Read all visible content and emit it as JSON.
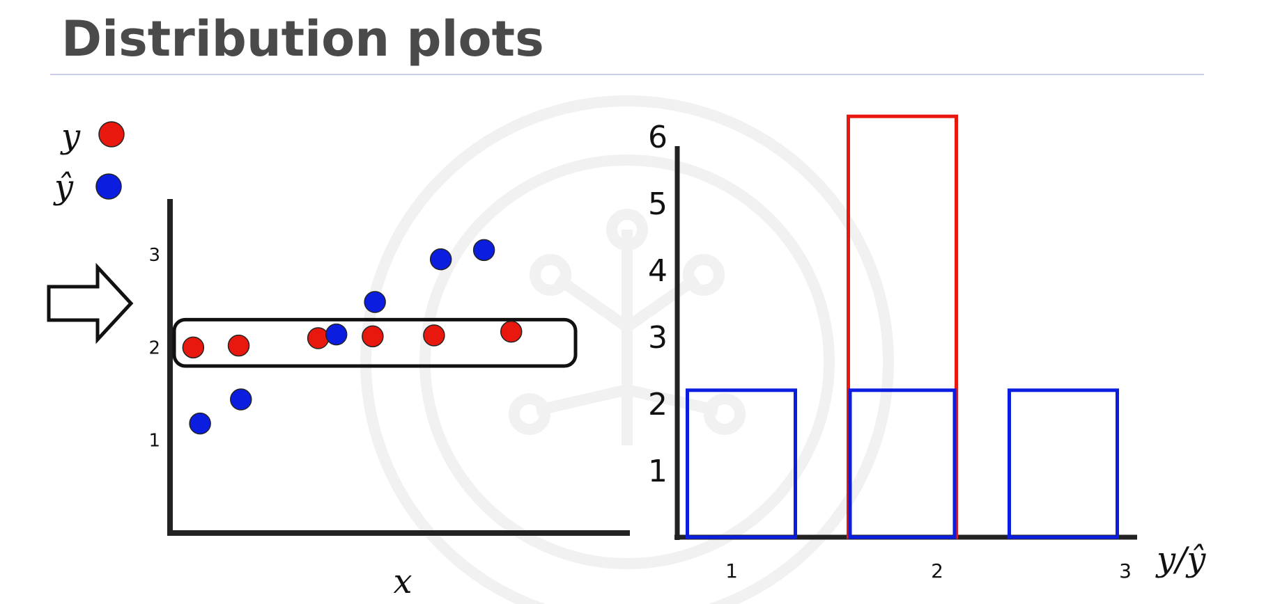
{
  "title": "Distribution plots",
  "colors": {
    "actual": "#e8180f",
    "predicted": "#0b1ee0",
    "axis": "#222222",
    "title": "#4a4a4a",
    "rule": "#c8cce8"
  },
  "chart_data": [
    {
      "type": "scatter",
      "legend": [
        {
          "label": "y",
          "color": "#e8180f"
        },
        {
          "label": "ŷ",
          "color": "#0b1ee0"
        }
      ],
      "legend_position": "top-left",
      "xlabel": "x",
      "ylabel": "",
      "yticks": [
        "1",
        "2",
        "3"
      ],
      "ylim": [
        0,
        3.6
      ],
      "xlim": [
        0,
        10
      ],
      "series": [
        {
          "name": "y",
          "color": "#e8180f",
          "points": [
            [
              0.45,
              2.0
            ],
            [
              1.45,
              2.02
            ],
            [
              3.2,
              2.1
            ],
            [
              4.4,
              2.12
            ],
            [
              5.75,
              2.13
            ],
            [
              7.45,
              2.17
            ]
          ]
        },
        {
          "name": "ŷ",
          "color": "#0b1ee0",
          "points": [
            [
              0.6,
              1.18
            ],
            [
              1.5,
              1.44
            ],
            [
              3.6,
              2.14
            ],
            [
              4.45,
              2.49
            ],
            [
              5.9,
              2.95
            ],
            [
              6.85,
              3.05
            ]
          ]
        }
      ],
      "highlight_band": {
        "y_from": 1.8,
        "y_to": 2.3
      },
      "arrow": "pointing right at the highlighted band",
      "grid": false
    },
    {
      "type": "bar",
      "chart_style": "overlaid outlined histogram",
      "xlabel": "y/ŷ",
      "ylabel": "",
      "categories": [
        "1",
        "2",
        "3"
      ],
      "yticks": [
        "1",
        "2",
        "3",
        "4",
        "5",
        "6"
      ],
      "ylim": [
        0,
        6.5
      ],
      "series": [
        {
          "name": "y",
          "color": "#e8180f",
          "values": [
            0,
            6.3,
            0
          ]
        },
        {
          "name": "ŷ",
          "color": "#0b1ee0",
          "values": [
            2.2,
            2.2,
            2.2
          ]
        }
      ],
      "grid": false
    }
  ]
}
